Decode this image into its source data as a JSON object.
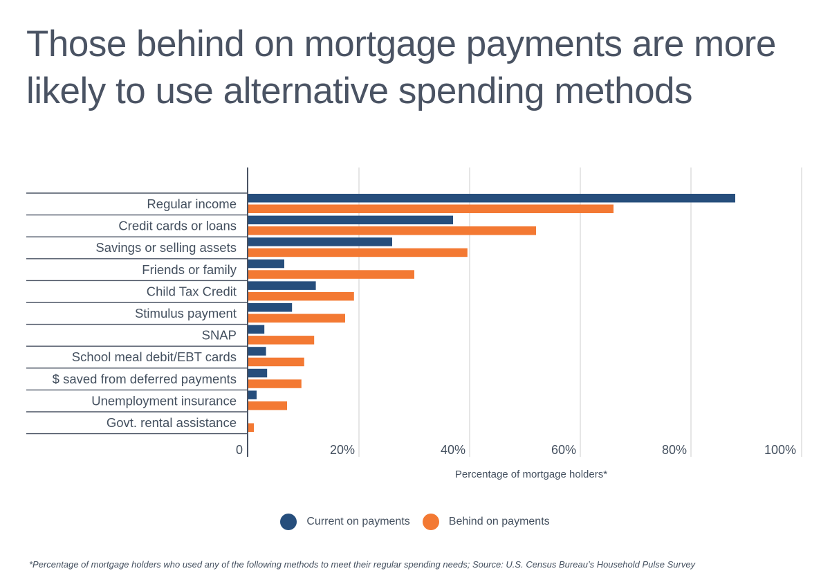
{
  "title": "Those behind on mortgage payments are more likely to use alternative spending methods",
  "footnote": "*Percentage of mortgage holders who used any of the following methods to meet their regular spending needs; Source:  U.S. Census Bureau’s Household Pulse Survey",
  "colors": {
    "current": "#264e7c",
    "behind": "#f37933",
    "grid": "#d9d9d9",
    "axis": "#4a5363",
    "text": "#44505f"
  },
  "chart_data": {
    "type": "bar",
    "orientation": "horizontal",
    "categories": [
      "Regular income",
      "Credit cards or loans",
      "Savings or selling assets",
      "Friends or family",
      "Child Tax Credit",
      "Stimulus payment",
      "SNAP",
      "School meal debit/EBT cards",
      "$ saved from deferred payments",
      "Unemployment insurance",
      "Govt. rental assistance"
    ],
    "series": [
      {
        "name": "Current on payments",
        "color": "#264e7c",
        "values": [
          88,
          37,
          26,
          6.5,
          12.2,
          7.9,
          2.9,
          3.2,
          3.4,
          1.5,
          0
        ]
      },
      {
        "name": "Behind on payments",
        "color": "#f37933",
        "values": [
          66,
          52,
          39.6,
          30,
          19.1,
          17.5,
          11.9,
          10.1,
          9.6,
          7,
          1
        ]
      }
    ],
    "xlim": [
      0,
      100
    ],
    "xticks": [
      0,
      20,
      40,
      60,
      80,
      100
    ],
    "xtick_labels": [
      "0",
      "20%",
      "40%",
      "60%",
      "80%",
      "100%"
    ],
    "xlabel": "Percentage of mortgage holders*",
    "ylabel": "",
    "grid": "vertical",
    "legend_position": "bottom"
  }
}
